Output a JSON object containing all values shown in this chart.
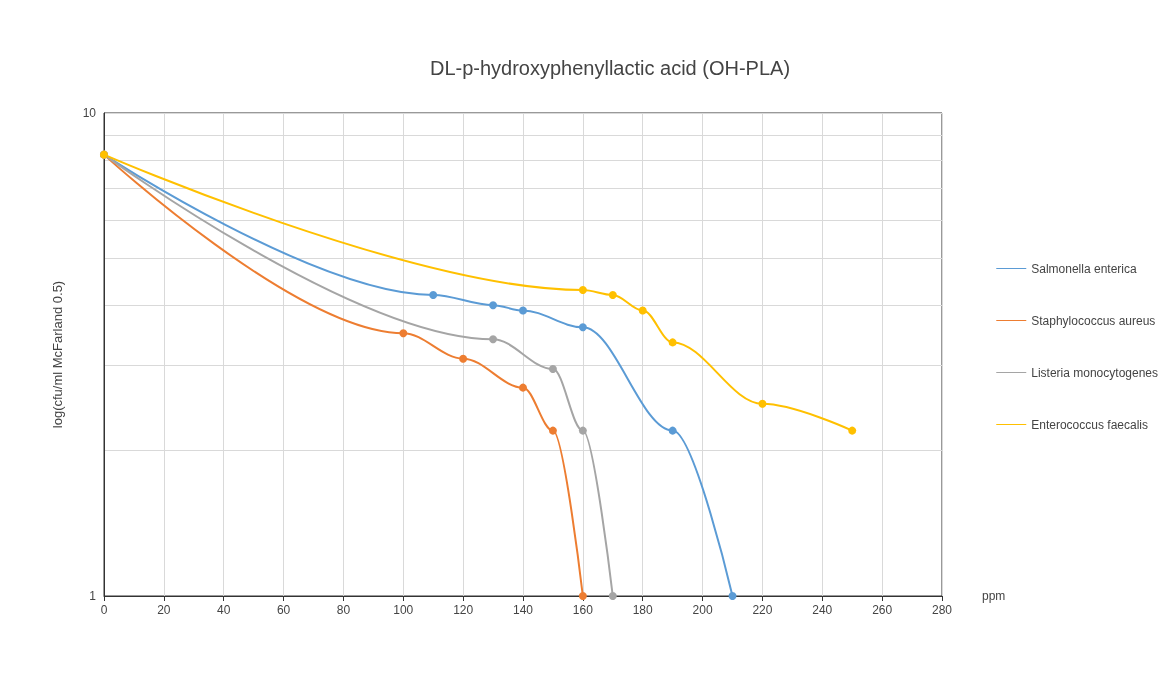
{
  "chart_data": {
    "type": "line",
    "title": "DL-p-hydroxyphenyllactic acid (OH-PLA)",
    "xlabel": "ppm",
    "ylabel": "log(cfu/ml McFarland 0.5)",
    "xlim": [
      0,
      280
    ],
    "xticks": [
      0,
      20,
      40,
      60,
      80,
      100,
      120,
      140,
      160,
      180,
      200,
      220,
      240,
      260,
      280
    ],
    "ylim": [
      1,
      10
    ],
    "yticks": [
      1,
      {
        "value": 2,
        "label": null
      },
      {
        "value": 3,
        "label": null
      },
      {
        "value": 4,
        "label": null
      },
      {
        "value": 5,
        "label": null
      },
      {
        "value": 6,
        "label": null
      },
      {
        "value": 7,
        "label": null
      },
      {
        "value": 8,
        "label": null
      },
      {
        "value": 9,
        "label": null
      },
      10
    ],
    "log": "y",
    "grid": true,
    "legend": "right",
    "marker": "circle",
    "line_style": "solid",
    "series": [
      {
        "name": "Salmonella enterica",
        "color": "#5b9bd5",
        "x": [
          0,
          110,
          130,
          140,
          160,
          190,
          210
        ],
        "values": [
          8.2,
          4.2,
          4.0,
          3.9,
          3.6,
          2.2,
          1
        ]
      },
      {
        "name": "Staphylococcus aureus",
        "color": "#ed7d31",
        "x": [
          0,
          100,
          120,
          140,
          150,
          160
        ],
        "values": [
          8.2,
          3.5,
          3.1,
          2.7,
          2.2,
          1
        ]
      },
      {
        "name": "Listeria monocytogenes",
        "color": "#a5a5a5",
        "x": [
          0,
          130,
          150,
          160,
          170
        ],
        "values": [
          8.2,
          3.4,
          2.95,
          2.2,
          1
        ]
      },
      {
        "name": "Enterococcus faecalis",
        "color": "#ffc000",
        "x": [
          0,
          160,
          170,
          180,
          190,
          220,
          250
        ],
        "values": [
          8.2,
          4.3,
          4.2,
          3.9,
          3.35,
          2.5,
          2.2
        ]
      }
    ]
  }
}
